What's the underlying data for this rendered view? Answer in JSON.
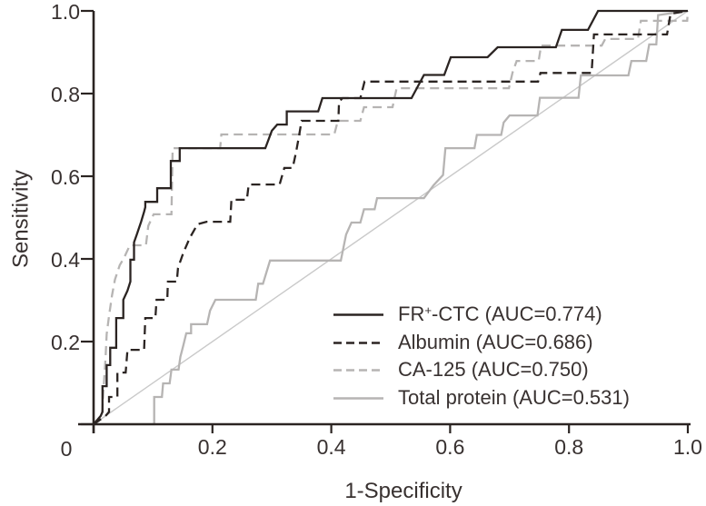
{
  "figure": {
    "origin_label": "0"
  },
  "chart_data": {
    "type": "line",
    "subtype": "roc-curves",
    "title": "",
    "xlabel": "1-Specificity",
    "ylabel": "Sensitivity",
    "xlim": [
      0,
      1.0
    ],
    "ylim": [
      0,
      1.0
    ],
    "grid": false,
    "legend_position": "lower right",
    "x_ticks": [
      {
        "v": 0.2,
        "label": "0.2"
      },
      {
        "v": 0.4,
        "label": "0.4"
      },
      {
        "v": 0.6,
        "label": "0.6"
      },
      {
        "v": 0.8,
        "label": "0.8"
      },
      {
        "v": 1.0,
        "label": "1.0"
      }
    ],
    "y_ticks": [
      {
        "v": 0.2,
        "label": "0.2"
      },
      {
        "v": 0.4,
        "label": "0.4"
      },
      {
        "v": 0.6,
        "label": "0.6"
      },
      {
        "v": 0.8,
        "label": "0.8"
      },
      {
        "v": 1.0,
        "label": "1.0"
      }
    ],
    "axis_color": "#2b2422",
    "diagonal": {
      "color": "#c9c9c9",
      "points": [
        [
          0,
          0
        ],
        [
          1,
          1
        ]
      ]
    },
    "series": [
      {
        "id": "total-protein",
        "name": "Total protein",
        "auc": 0.531,
        "color": "#b6b4b3",
        "dash": null,
        "label_parts": [
          {
            "t": "Total protein (AUC=0.531)"
          }
        ],
        "points": [
          [
            0,
            0
          ],
          [
            0.102,
            0
          ],
          [
            0.102,
            0.066
          ],
          [
            0.115,
            0.066
          ],
          [
            0.117,
            0.099
          ],
          [
            0.128,
            0.099
          ],
          [
            0.131,
            0.132
          ],
          [
            0.143,
            0.132
          ],
          [
            0.146,
            0.163
          ],
          [
            0.151,
            0.191
          ],
          [
            0.156,
            0.22
          ],
          [
            0.164,
            0.22
          ],
          [
            0.164,
            0.242
          ],
          [
            0.191,
            0.242
          ],
          [
            0.196,
            0.275
          ],
          [
            0.205,
            0.301
          ],
          [
            0.273,
            0.301
          ],
          [
            0.277,
            0.34
          ],
          [
            0.285,
            0.34
          ],
          [
            0.297,
            0.396
          ],
          [
            0.416,
            0.396
          ],
          [
            0.425,
            0.459
          ],
          [
            0.434,
            0.488
          ],
          [
            0.449,
            0.488
          ],
          [
            0.455,
            0.52
          ],
          [
            0.473,
            0.52
          ],
          [
            0.477,
            0.547
          ],
          [
            0.556,
            0.547
          ],
          [
            0.572,
            0.578
          ],
          [
            0.588,
            0.603
          ],
          [
            0.592,
            0.668
          ],
          [
            0.641,
            0.668
          ],
          [
            0.645,
            0.7
          ],
          [
            0.686,
            0.7
          ],
          [
            0.69,
            0.73
          ],
          [
            0.7,
            0.747
          ],
          [
            0.747,
            0.747
          ],
          [
            0.751,
            0.79
          ],
          [
            0.816,
            0.79
          ],
          [
            0.82,
            0.844
          ],
          [
            0.9,
            0.844
          ],
          [
            0.905,
            0.879
          ],
          [
            0.93,
            0.879
          ],
          [
            0.935,
            0.919
          ],
          [
            0.947,
            0.919
          ],
          [
            0.95,
            0.99
          ],
          [
            1,
            1
          ]
        ]
      },
      {
        "id": "ca-125",
        "name": "CA-125",
        "auc": 0.75,
        "color": "#b6b4b3",
        "dash": "10,6",
        "label_parts": [
          {
            "t": "CA-125 (AUC=0.750)"
          }
        ],
        "points": [
          [
            0,
            0
          ],
          [
            0.014,
            0.02
          ],
          [
            0.017,
            0.09
          ],
          [
            0.02,
            0.158
          ],
          [
            0.022,
            0.218
          ],
          [
            0.026,
            0.262
          ],
          [
            0.031,
            0.312
          ],
          [
            0.036,
            0.35
          ],
          [
            0.044,
            0.385
          ],
          [
            0.051,
            0.402
          ],
          [
            0.061,
            0.433
          ],
          [
            0.088,
            0.433
          ],
          [
            0.092,
            0.48
          ],
          [
            0.101,
            0.508
          ],
          [
            0.131,
            0.508
          ],
          [
            0.133,
            0.668
          ],
          [
            0.213,
            0.668
          ],
          [
            0.215,
            0.701
          ],
          [
            0.405,
            0.701
          ],
          [
            0.411,
            0.734
          ],
          [
            0.449,
            0.734
          ],
          [
            0.455,
            0.767
          ],
          [
            0.503,
            0.767
          ],
          [
            0.51,
            0.813
          ],
          [
            0.699,
            0.813
          ],
          [
            0.705,
            0.851
          ],
          [
            0.712,
            0.879
          ],
          [
            0.749,
            0.879
          ],
          [
            0.753,
            0.916
          ],
          [
            0.855,
            0.916
          ],
          [
            0.861,
            0.932
          ],
          [
            0.916,
            0.932
          ],
          [
            0.921,
            0.976
          ],
          [
            0.999,
            0.976
          ],
          [
            1,
            1
          ]
        ]
      },
      {
        "id": "albumin",
        "name": "Albumin",
        "auc": 0.686,
        "color": "#2b2422",
        "dash": "10,6",
        "label_parts": [
          {
            "t": "Albumin (AUC=0.686)"
          }
        ],
        "points": [
          [
            0,
            0
          ],
          [
            0.02,
            0.02
          ],
          [
            0.026,
            0.03
          ],
          [
            0.026,
            0.066
          ],
          [
            0.04,
            0.066
          ],
          [
            0.04,
            0.125
          ],
          [
            0.054,
            0.125
          ],
          [
            0.057,
            0.18
          ],
          [
            0.085,
            0.18
          ],
          [
            0.087,
            0.257
          ],
          [
            0.104,
            0.257
          ],
          [
            0.106,
            0.301
          ],
          [
            0.124,
            0.301
          ],
          [
            0.125,
            0.345
          ],
          [
            0.14,
            0.345
          ],
          [
            0.142,
            0.378
          ],
          [
            0.151,
            0.415
          ],
          [
            0.162,
            0.451
          ],
          [
            0.175,
            0.484
          ],
          [
            0.19,
            0.49
          ],
          [
            0.23,
            0.49
          ],
          [
            0.232,
            0.543
          ],
          [
            0.258,
            0.543
          ],
          [
            0.261,
            0.58
          ],
          [
            0.313,
            0.58
          ],
          [
            0.321,
            0.62
          ],
          [
            0.335,
            0.62
          ],
          [
            0.341,
            0.66
          ],
          [
            0.346,
            0.7
          ],
          [
            0.35,
            0.734
          ],
          [
            0.412,
            0.734
          ],
          [
            0.413,
            0.78
          ],
          [
            0.419,
            0.789
          ],
          [
            0.449,
            0.789
          ],
          [
            0.456,
            0.829
          ],
          [
            0.748,
            0.829
          ],
          [
            0.752,
            0.85
          ],
          [
            0.838,
            0.85
          ],
          [
            0.842,
            0.943
          ],
          [
            0.965,
            0.943
          ],
          [
            0.971,
            0.993
          ],
          [
            1,
            1
          ]
        ]
      },
      {
        "id": "fr-ctc",
        "name": "FR+-CTC",
        "auc": 0.774,
        "color": "#2b2422",
        "dash": null,
        "label_parts": [
          {
            "t": "FR"
          },
          {
            "t": "+",
            "sup": true
          },
          {
            "t": "-CTC (AUC=0.774)"
          }
        ],
        "points": [
          [
            0,
            0
          ],
          [
            0.012,
            0.02
          ],
          [
            0.015,
            0.03
          ],
          [
            0.015,
            0.092
          ],
          [
            0.022,
            0.092
          ],
          [
            0.022,
            0.143
          ],
          [
            0.028,
            0.143
          ],
          [
            0.028,
            0.185
          ],
          [
            0.038,
            0.185
          ],
          [
            0.038,
            0.257
          ],
          [
            0.05,
            0.257
          ],
          [
            0.05,
            0.301
          ],
          [
            0.057,
            0.323
          ],
          [
            0.062,
            0.345
          ],
          [
            0.062,
            0.398
          ],
          [
            0.068,
            0.398
          ],
          [
            0.068,
            0.44
          ],
          [
            0.073,
            0.46
          ],
          [
            0.08,
            0.49
          ],
          [
            0.085,
            0.514
          ],
          [
            0.087,
            0.525
          ],
          [
            0.087,
            0.538
          ],
          [
            0.107,
            0.538
          ],
          [
            0.107,
            0.571
          ],
          [
            0.13,
            0.571
          ],
          [
            0.13,
            0.637
          ],
          [
            0.145,
            0.637
          ],
          [
            0.145,
            0.668
          ],
          [
            0.289,
            0.668
          ],
          [
            0.3,
            0.71
          ],
          [
            0.309,
            0.725
          ],
          [
            0.325,
            0.725
          ],
          [
            0.325,
            0.757
          ],
          [
            0.378,
            0.757
          ],
          [
            0.385,
            0.789
          ],
          [
            0.535,
            0.789
          ],
          [
            0.556,
            0.845
          ],
          [
            0.59,
            0.845
          ],
          [
            0.601,
            0.888
          ],
          [
            0.663,
            0.888
          ],
          [
            0.68,
            0.912
          ],
          [
            0.778,
            0.912
          ],
          [
            0.788,
            0.954
          ],
          [
            0.832,
            0.954
          ],
          [
            0.849,
            1.0
          ],
          [
            1,
            1
          ]
        ]
      }
    ]
  }
}
